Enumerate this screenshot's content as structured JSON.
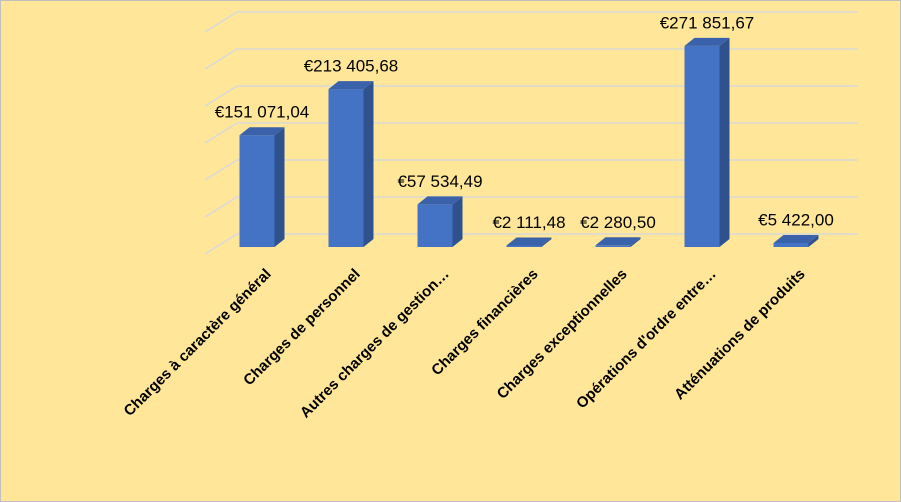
{
  "chart_data": {
    "type": "bar3d",
    "categories": [
      "Charges à caractère général",
      "Charges de personnel",
      "Autres charges de gestion…",
      "Charges financières",
      "Charges exceptionnelles",
      "Opérations d'ordre entre…",
      "Atténuations de produits"
    ],
    "values": [
      151071.04,
      213405.68,
      57534.49,
      2111.48,
      2280.5,
      271851.67,
      5422.0
    ],
    "value_labels": [
      "€151 071,04",
      "€213 405,68",
      "€57 534,49",
      "€2 111,48",
      "€2 280,50",
      "€271 851,67",
      "€5 422,00"
    ],
    "color": "#4472c4",
    "ylim": [
      0,
      300000
    ],
    "yticks": [
      0,
      50000,
      100000,
      150000,
      200000,
      250000,
      300000
    ],
    "grid": true
  }
}
